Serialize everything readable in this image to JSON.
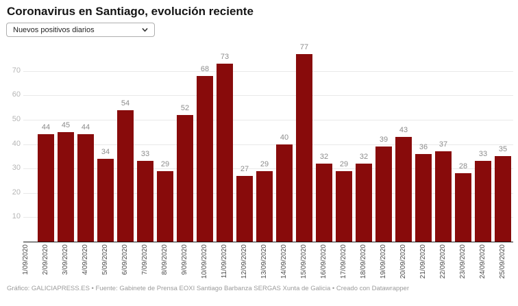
{
  "header": {
    "title": "Coronavirus en Santiago, evolución reciente",
    "select": {
      "value": "Nuevos positivos diarios",
      "chevron_icon": "chevron-down"
    }
  },
  "chart_data": {
    "type": "bar",
    "title": "Coronavirus en Santiago, evolución reciente",
    "categories": [
      "1/09/2020",
      "2/09/2020",
      "3/09/2020",
      "4/09/2020",
      "5/09/2020",
      "6/09/2020",
      "7/09/2020",
      "8/09/2020",
      "9/09/2020",
      "10/09/2020",
      "11/09/2020",
      "12/09/2020",
      "13/09/2020",
      "14/09/2020",
      "15/09/2020",
      "16/09/2020",
      "17/09/2020",
      "18/09/2020",
      "19/09/2020",
      "20/09/2020",
      "21/09/2020",
      "22/09/2020",
      "23/09/2020",
      "24/09/2020",
      "25/09/2020"
    ],
    "values": [
      null,
      44,
      45,
      44,
      34,
      54,
      33,
      29,
      52,
      68,
      73,
      27,
      29,
      40,
      77,
      32,
      29,
      32,
      39,
      43,
      36,
      37,
      28,
      33,
      35
    ],
    "xlabel": "",
    "ylabel": "",
    "ylim": [
      0,
      80
    ],
    "yticks": [
      10,
      20,
      30,
      40,
      50,
      60,
      70
    ],
    "grid": true,
    "value_labels": true,
    "legend": "none",
    "colors": {
      "bar": "#880b0b",
      "grid": "#e9e9e9",
      "axis_line": "#161616",
      "ytick_label": "#b5b5b5",
      "value_label": "#8c8c8c",
      "xtick_label": "#4a4a4a"
    }
  },
  "footer": {
    "text": "Gráfico: GALICIAPRESS.ES • Fuente: Gabinete de Prensa EOXI Santiago Barbanza SERGAS Xunta de Galicia • Creado con Datawrapper"
  }
}
